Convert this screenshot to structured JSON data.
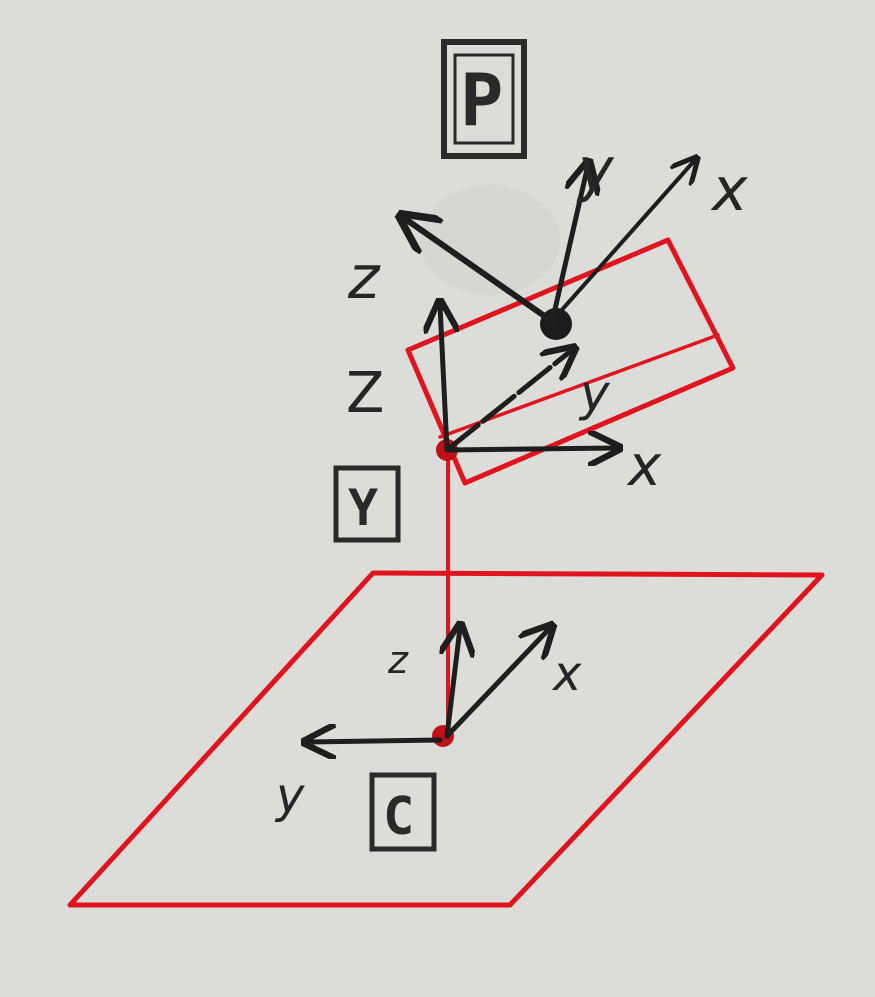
{
  "colors": {
    "paper": "#dcdcd9",
    "red_ink": "#e0141e",
    "pencil": "#1e1e1e"
  },
  "frames": {
    "P": {
      "box_label": "P",
      "x_label": "x",
      "y_label": "y",
      "z_label": "z"
    },
    "Y": {
      "box_label": "Y",
      "x_label": "x",
      "y_label": "y",
      "z_label": "Z"
    },
    "C": {
      "box_label": "C",
      "x_label": "x",
      "y_label": "y",
      "z_label": "z"
    }
  }
}
